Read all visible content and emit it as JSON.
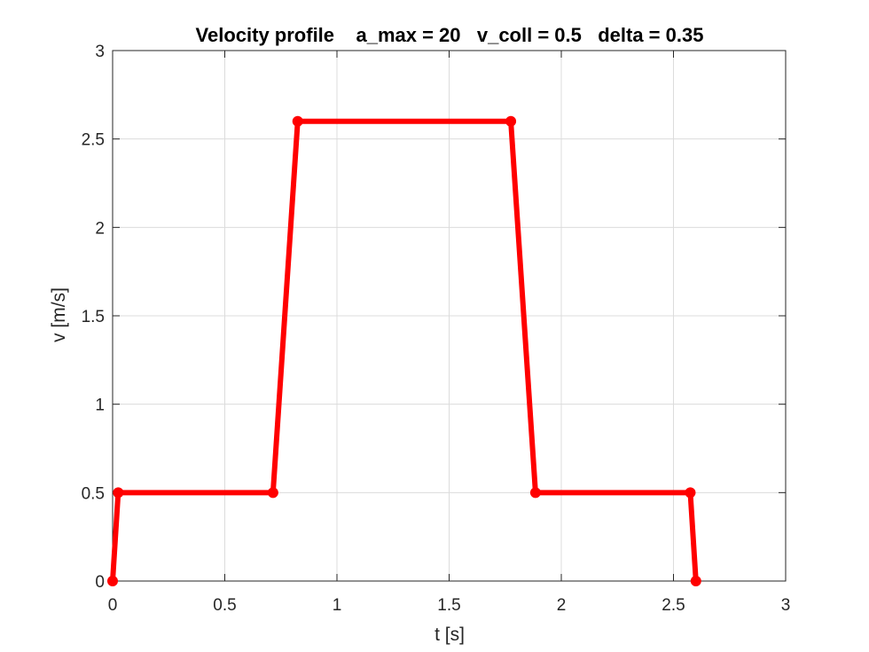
{
  "chart_data": {
    "type": "line",
    "title": "Velocity profile    a_max = 20   v_coll = 0.5   delta = 0.35",
    "xlabel": "t [s]",
    "ylabel": "v [m/s]",
    "xlim": [
      0,
      3
    ],
    "ylim": [
      0,
      3
    ],
    "xticks": [
      0,
      0.5,
      1,
      1.5,
      2,
      2.5,
      3
    ],
    "xtick_labels": [
      "0",
      "0.5",
      "1",
      "1.5",
      "2",
      "2.5",
      "3"
    ],
    "yticks": [
      0,
      0.5,
      1,
      1.5,
      2,
      2.5,
      3
    ],
    "ytick_labels": [
      "0",
      "0.5",
      "1",
      "1.5",
      "2",
      "2.5",
      "3"
    ],
    "grid": true,
    "series": [
      {
        "color": "#ff0000",
        "x": [
          0,
          0.025,
          0.715,
          0.825,
          1.775,
          1.885,
          2.575,
          2.6
        ],
        "y": [
          0,
          0.5,
          0.5,
          2.6,
          2.6,
          0.5,
          0.5,
          0
        ]
      }
    ]
  }
}
